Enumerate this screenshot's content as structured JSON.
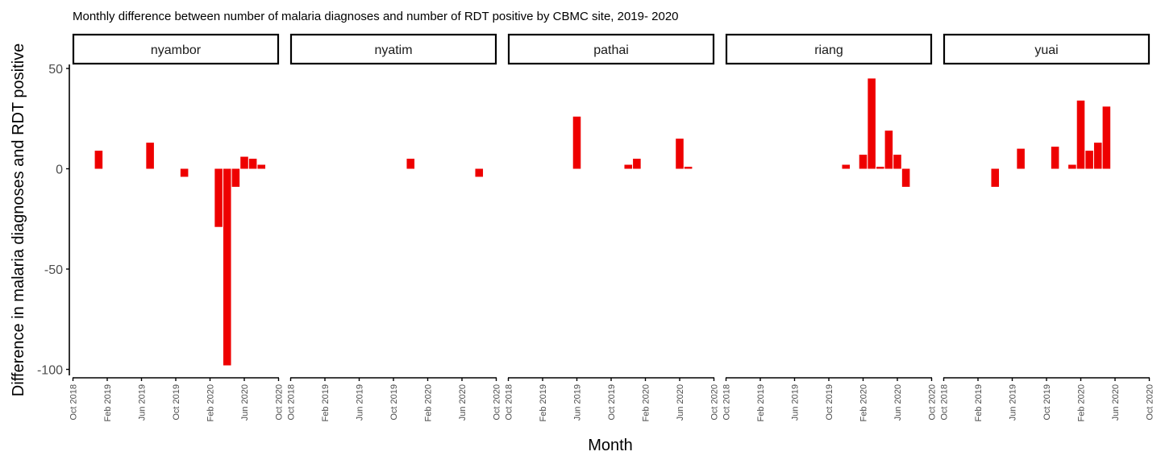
{
  "chart_data": {
    "type": "bar",
    "title": "Monthly difference between number of malaria diagnoses and number of RDT positive by CBMC site, 2019- 2020",
    "xlabel": "Month",
    "ylabel": "Difference in malaria diagnoses and RDT positive",
    "ylim": [
      -103,
      52
    ],
    "yticks": [
      -100,
      -50,
      0,
      50
    ],
    "ytick_labels": [
      "-100",
      "-50",
      "0",
      "50"
    ],
    "xlim": [
      "2018-10-01",
      "2020-10-01"
    ],
    "xticks": [
      "Oct 2018",
      "Feb 2019",
      "Jun 2019",
      "Oct 2019",
      "Feb 2020",
      "Jun 2020",
      "Oct 2020"
    ],
    "grid": false,
    "legend": "none",
    "bar_color": "#ee0000",
    "panels": [
      {
        "site": "nyambor",
        "bars": [
          {
            "month": "2019-01",
            "value": 9
          },
          {
            "month": "2019-07",
            "value": 13
          },
          {
            "month": "2019-11",
            "value": -4
          },
          {
            "month": "2020-03",
            "value": -29
          },
          {
            "month": "2020-04",
            "value": -98
          },
          {
            "month": "2020-05",
            "value": -9
          },
          {
            "month": "2020-06",
            "value": 6
          },
          {
            "month": "2020-07",
            "value": 5
          },
          {
            "month": "2020-08",
            "value": 2
          }
        ]
      },
      {
        "site": "nyatim",
        "bars": [
          {
            "month": "2019-12",
            "value": 5
          },
          {
            "month": "2020-08",
            "value": -4
          }
        ]
      },
      {
        "site": "pathai",
        "bars": [
          {
            "month": "2019-06",
            "value": 26
          },
          {
            "month": "2019-12",
            "value": 2
          },
          {
            "month": "2020-01",
            "value": 5
          },
          {
            "month": "2020-06",
            "value": 15
          },
          {
            "month": "2020-07",
            "value": 1
          }
        ]
      },
      {
        "site": "riang",
        "bars": [
          {
            "month": "2019-12",
            "value": 2
          },
          {
            "month": "2020-02",
            "value": 7
          },
          {
            "month": "2020-03",
            "value": 45
          },
          {
            "month": "2020-04",
            "value": 1
          },
          {
            "month": "2020-05",
            "value": 19
          },
          {
            "month": "2020-06",
            "value": 7
          },
          {
            "month": "2020-07",
            "value": -9
          }
        ]
      },
      {
        "site": "yuai",
        "bars": [
          {
            "month": "2019-04",
            "value": -9
          },
          {
            "month": "2019-07",
            "value": 10
          },
          {
            "month": "2019-11",
            "value": 11
          },
          {
            "month": "2020-01",
            "value": 2
          },
          {
            "month": "2020-02",
            "value": 34
          },
          {
            "month": "2020-03",
            "value": 9
          },
          {
            "month": "2020-04",
            "value": 13
          },
          {
            "month": "2020-05",
            "value": 31
          }
        ]
      }
    ]
  }
}
